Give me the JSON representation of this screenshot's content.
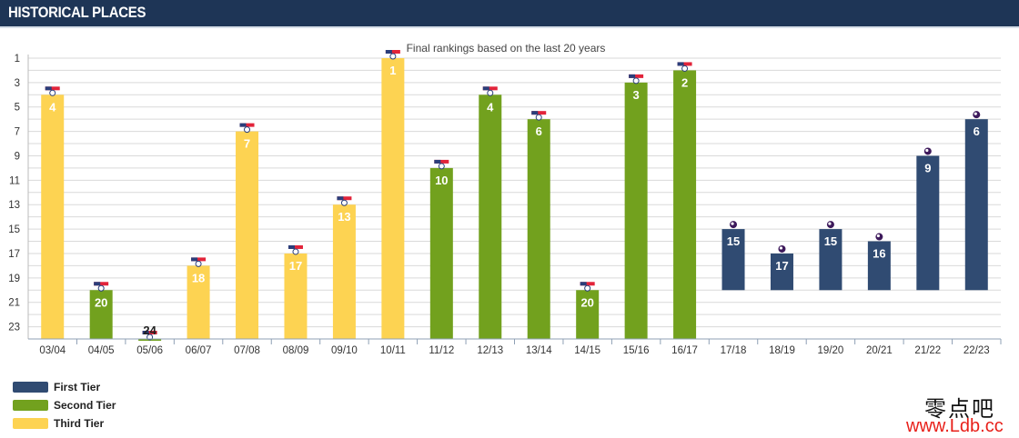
{
  "header": {
    "title": "HISTORICAL PLACES"
  },
  "chart_data": {
    "type": "bar",
    "title": "Final rankings based on the last 20 years",
    "categories": [
      "03/04",
      "04/05",
      "05/06",
      "06/07",
      "07/08",
      "08/09",
      "09/10",
      "10/11",
      "11/12",
      "12/13",
      "13/14",
      "14/15",
      "15/16",
      "16/17",
      "17/18",
      "18/19",
      "19/20",
      "20/21",
      "21/22",
      "22/23"
    ],
    "values": [
      4,
      20,
      24,
      18,
      7,
      17,
      13,
      1,
      10,
      4,
      6,
      20,
      3,
      2,
      15,
      17,
      15,
      16,
      9,
      6
    ],
    "tiers": [
      "Third Tier",
      "Second Tier",
      "Second Tier",
      "Third Tier",
      "Third Tier",
      "Third Tier",
      "Third Tier",
      "Third Tier",
      "Second Tier",
      "Second Tier",
      "Second Tier",
      "Second Tier",
      "Second Tier",
      "Second Tier",
      "First Tier",
      "First Tier",
      "First Tier",
      "First Tier",
      "First Tier",
      "First Tier"
    ],
    "y_ticks": [
      1,
      3,
      5,
      7,
      9,
      11,
      13,
      15,
      17,
      19,
      21,
      23
    ],
    "ylim": [
      1,
      24
    ],
    "y_inverted": true,
    "grid": true
  },
  "legend": [
    {
      "label": "First Tier",
      "color": "#304b72"
    },
    {
      "label": "Second Tier",
      "color": "#72a11e"
    },
    {
      "label": "Third Tier",
      "color": "#fdd352"
    }
  ],
  "watermark": {
    "cn": "零点吧",
    "url": "www.Ldb.cc"
  }
}
